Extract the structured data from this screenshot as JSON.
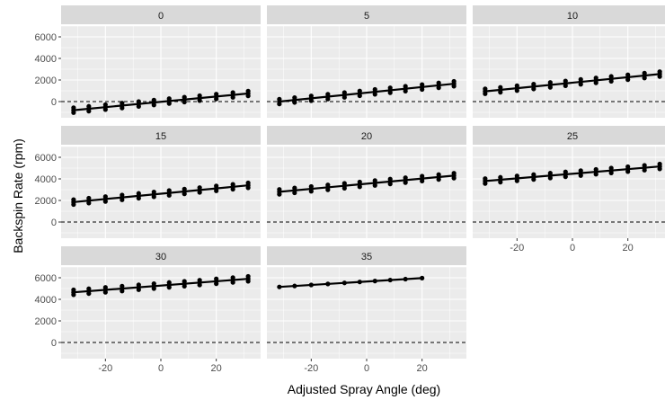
{
  "chart_data": {
    "type": "scatter",
    "facet_by": "facet variable",
    "xlabel": "Adjusted Spray Angle (deg)",
    "ylabel": "Backspin Rate (rpm)",
    "xlim": [
      -36,
      36
    ],
    "ylim": [
      -1500,
      7000
    ],
    "x_ticks": [
      -20,
      0,
      20
    ],
    "y_ticks": [
      0,
      2000,
      4000,
      6000
    ],
    "reference_line": {
      "y": 0,
      "style": "dashed"
    },
    "grid": true,
    "legend": "none",
    "colors": {
      "panel_background": "#ebebeb",
      "strip_background": "#d9d9d9",
      "gridline": "#ffffff",
      "points": "#000000",
      "fit_line": "#000000"
    },
    "x_columns": [
      -31.5,
      -26,
      -20,
      -14,
      -8,
      -2.5,
      3,
      8.5,
      14,
      20,
      26,
      31.5
    ],
    "facets": [
      {
        "label": "0",
        "fit": [
          -800,
          750
        ],
        "spread": 450,
        "max_x": 31.5
      },
      {
        "label": "5",
        "fit": [
          0,
          1650
        ],
        "spread": 450,
        "max_x": 31.5
      },
      {
        "label": "10",
        "fit": [
          950,
          2550
        ],
        "spread": 450,
        "max_x": 31.5
      },
      {
        "label": "15",
        "fit": [
          1850,
          3400
        ],
        "spread": 450,
        "max_x": 31.5
      },
      {
        "label": "20",
        "fit": [
          2800,
          4300
        ],
        "spread": 450,
        "max_x": 31.5
      },
      {
        "label": "25",
        "fit": [
          3800,
          5150
        ],
        "spread": 450,
        "max_x": 31.5
      },
      {
        "label": "30",
        "fit": [
          4650,
          5900
        ],
        "spread": 450,
        "max_x": 31.5
      },
      {
        "label": "35",
        "fit": [
          5150,
          6150
        ],
        "spread": 120,
        "max_x": 20
      }
    ]
  }
}
